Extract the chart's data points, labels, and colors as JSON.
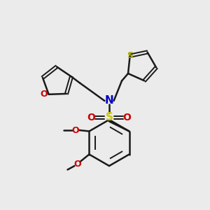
{
  "background_color": "#ebebeb",
  "bond_color": "#1a1a1a",
  "N_color": "#0000cc",
  "O_color": "#cc0000",
  "S_thio_color": "#aaaa00",
  "S_sulfonyl_color": "#cccc00",
  "figsize": [
    3.0,
    3.0
  ],
  "dpi": 100,
  "xlim": [
    0,
    10
  ],
  "ylim": [
    0,
    10
  ]
}
